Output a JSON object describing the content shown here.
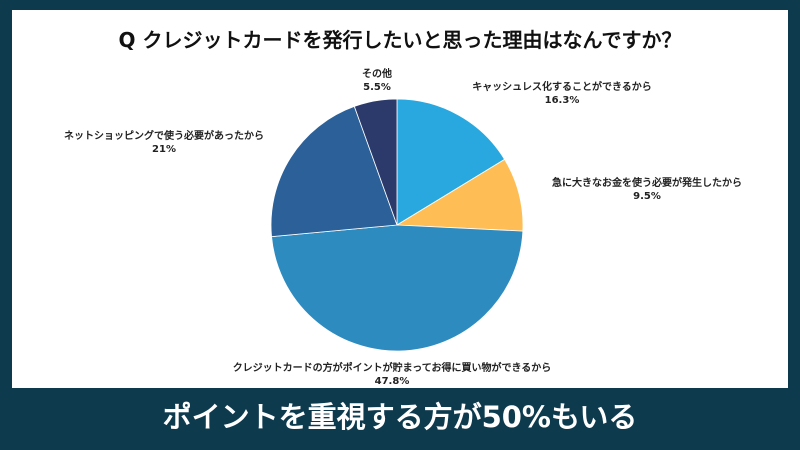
{
  "title": "Q クレジットカードを発行したいと思った理由はなんですか？",
  "banner": "ポイントを重視する方が50%もいる",
  "chart_data": {
    "type": "pie",
    "title": "Q クレジットカードを発行したいと思った理由はなんですか？",
    "slices": [
      {
        "label": "キャッシュレス化することができるから",
        "value": 16.3,
        "display": "16.3%",
        "color": "#29a8e0"
      },
      {
        "label": "急に大きなお金を使う必要が発生したから",
        "value": 9.5,
        "display": "9.5%",
        "color": "#ffbe55"
      },
      {
        "label": "クレジットカードの方がポイントが貯まってお得に買い物ができるから",
        "value": 47.8,
        "display": "47.8%",
        "color": "#2e8bc0"
      },
      {
        "label": "ネットショッピングで使う必要があったから",
        "value": 21,
        "display": "21%",
        "color": "#2c6099"
      },
      {
        "label": "その他",
        "value": 5.5,
        "display": "5.5%",
        "color": "#2b3a6b"
      }
    ],
    "legend": "none"
  }
}
